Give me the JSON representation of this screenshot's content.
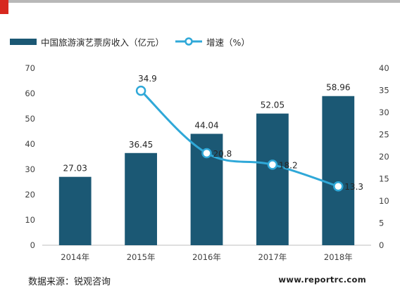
{
  "chart_data": {
    "type": "bar",
    "categories": [
      "2014年",
      "2015年",
      "2016年",
      "2017年",
      "2018年"
    ],
    "series": [
      {
        "name": "中国旅游演艺票房收入（亿元）",
        "type": "bar",
        "axis": "left",
        "values": [
          27.03,
          36.45,
          44.04,
          52.05,
          58.96
        ],
        "labels": [
          "27.03",
          "36.45",
          "44.04",
          "52.05",
          "58.96"
        ],
        "color": "#1b5874"
      },
      {
        "name": "增速（%）",
        "type": "line",
        "axis": "right",
        "values": [
          null,
          34.9,
          20.8,
          18.2,
          13.3
        ],
        "labels": [
          "",
          "34.9",
          "20.8",
          "18.2",
          "13.3"
        ],
        "color": "#2fa8d8"
      }
    ],
    "y_left": {
      "lim": [
        0,
        70
      ],
      "ticks": [
        "0",
        "10",
        "20",
        "30",
        "40",
        "50",
        "60",
        "70"
      ]
    },
    "y_right": {
      "lim": [
        0,
        40
      ],
      "ticks": [
        "0",
        "5",
        "10",
        "15",
        "20",
        "25",
        "30",
        "35",
        "40"
      ]
    },
    "legend_position": "top-left",
    "grid": false
  },
  "footer": {
    "source": "数据来源：锐观咨询",
    "website": "www.reportrc.com"
  }
}
